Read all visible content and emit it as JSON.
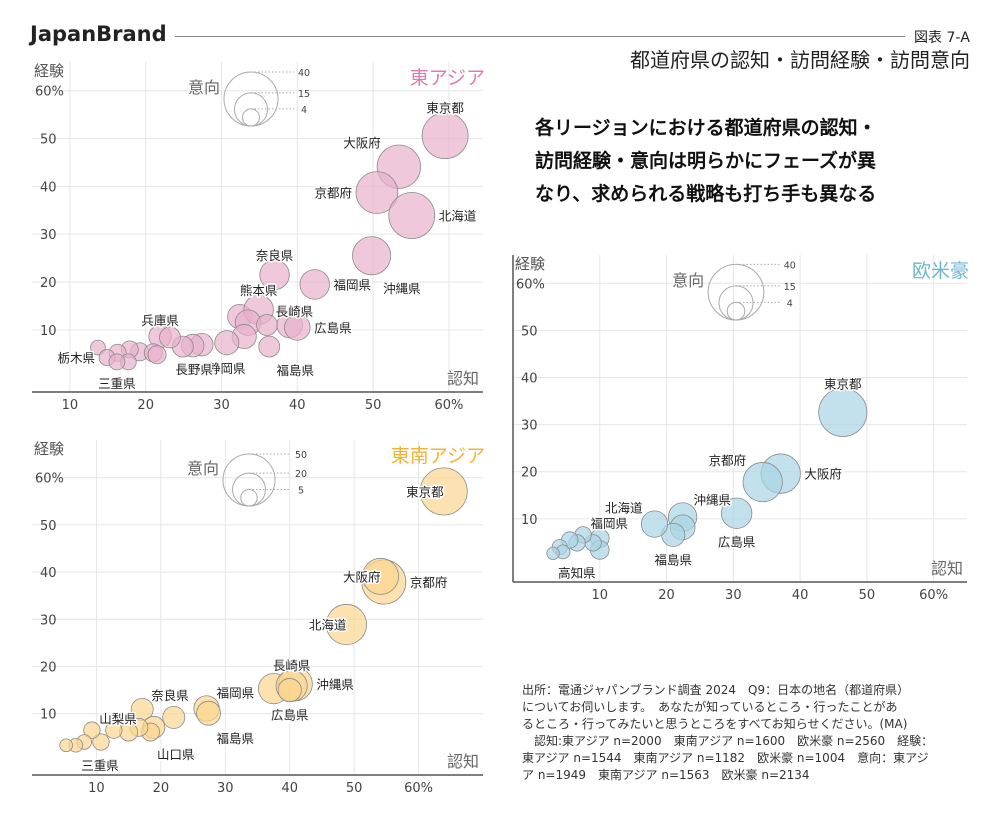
{
  "header": {
    "brand": "JapanBrand",
    "figure_number": "図表 7-A",
    "subtitle": "都道府県の認知・訪問経験・訪問意向"
  },
  "headline": [
    "各リージョンにおける都道府県の認知・",
    "訪問経験・意向は明らかにフェーズが異",
    "なり、求められる戦略も打ち手も異なる"
  ],
  "footnote": [
    "出所：電通ジャパンブランド調査 2024　Q9：日本の地名（都道府県）",
    "についてお伺いします。　あなたが知っているところ・行ったことがあ",
    "るところ・行ってみたいと思うところをすべてお知らせください。(MA)",
    "　認知:東アジア n=2000　東南アジア n=1600　欧米豪 n=2560　経験：",
    "東アジア n=1544　東南アジア n=1182　欧米豪 n=1004　意向：東アジ",
    "ア n=1949　東南アジア n=1563　欧米豪 n=2134"
  ],
  "chart_data": [
    {
      "type": "scatter",
      "region": "東アジア",
      "color": "#e07bb0",
      "bubble_color": "#e8b0cc",
      "xlabel": "認知",
      "ylabel": "経験",
      "size_label": "意向",
      "xticks": [
        "10",
        "20",
        "30",
        "40",
        "50",
        "60%"
      ],
      "xtick_values": [
        10,
        20,
        30,
        40,
        50,
        60
      ],
      "yticks": [
        "10",
        "20",
        "30",
        "40",
        "50",
        "60%"
      ],
      "ytick_values": [
        10,
        20,
        30,
        40,
        50,
        60
      ],
      "xlim": [
        5,
        64.5
      ],
      "ylim": [
        -3,
        66
      ],
      "grid": true,
      "size_legend": [
        40,
        15,
        4
      ],
      "points": [
        {
          "x": 59.5,
          "y": 50.6,
          "v": 29,
          "label": "東京都",
          "label_pos": "top"
        },
        {
          "x": 53.4,
          "y": 44.1,
          "v": 26,
          "label": "大阪府",
          "label_pos": "top-left"
        },
        {
          "x": 50.5,
          "y": 38.7,
          "v": 24,
          "label": "京都府",
          "label_pos": "left"
        },
        {
          "x": 55.1,
          "y": 33.9,
          "v": 29,
          "label": "北海道",
          "label_pos": "right"
        },
        {
          "x": 49.8,
          "y": 25.5,
          "v": 20,
          "label": "沖縄県",
          "label_pos": "bottom-right"
        },
        {
          "x": 42.3,
          "y": 19.5,
          "v": 12,
          "label": "福岡県",
          "label_pos": "right"
        },
        {
          "x": 37.0,
          "y": 21.5,
          "v": 12,
          "label": "奈良県",
          "label_pos": "top"
        },
        {
          "x": 32.4,
          "y": 12.8,
          "v": 8
        },
        {
          "x": 34.9,
          "y": 14.2,
          "v": 12,
          "label": "熊本県",
          "label_pos": "top"
        },
        {
          "x": 33.5,
          "y": 11.5,
          "v": 9
        },
        {
          "x": 36.0,
          "y": 11.0,
          "v": 6,
          "label": "長崎県",
          "label_pos": "top-right"
        },
        {
          "x": 39.0,
          "y": 11.0,
          "v": 9
        },
        {
          "x": 40.0,
          "y": 10.5,
          "v": 9,
          "label": "広島県",
          "label_pos": "right"
        },
        {
          "x": 33.0,
          "y": 8.6,
          "v": 8
        },
        {
          "x": 36.3,
          "y": 6.5,
          "v": 6,
          "label": "福島県",
          "label_pos": "bottom-right"
        },
        {
          "x": 30.7,
          "y": 7.3,
          "v": 8,
          "label": "静岡県",
          "label_pos": "bottom"
        },
        {
          "x": 27.4,
          "y": 6.9,
          "v": 7,
          "label": "長野県",
          "label_pos": "bottom-left"
        },
        {
          "x": 26.2,
          "y": 6.7,
          "v": 7
        },
        {
          "x": 24.9,
          "y": 6.5,
          "v": 6
        },
        {
          "x": 21.9,
          "y": 8.6,
          "v": 7,
          "label": "兵庫県",
          "label_pos": "top"
        },
        {
          "x": 23.2,
          "y": 8.4,
          "v": 6
        },
        {
          "x": 19.2,
          "y": 5.4,
          "v": 4.5
        },
        {
          "x": 21.0,
          "y": 5.2,
          "v": 4.5
        },
        {
          "x": 21.5,
          "y": 4.8,
          "v": 4.5
        },
        {
          "x": 17.9,
          "y": 5.9,
          "v": 4
        },
        {
          "x": 16.3,
          "y": 5.2,
          "v": 4
        },
        {
          "x": 17.7,
          "y": 3.3,
          "v": 3.5
        },
        {
          "x": 13.7,
          "y": 6.3,
          "v": 3
        },
        {
          "x": 14.9,
          "y": 4.2,
          "v": 3.5,
          "label": "栃木県",
          "label_pos": "left"
        },
        {
          "x": 16.2,
          "y": 3.3,
          "v": 3.5,
          "label": "三重県",
          "label_pos": "bottom"
        }
      ]
    },
    {
      "type": "scatter",
      "region": "東南アジア",
      "color": "#f5b335",
      "bubble_color": "#fbd68e",
      "xlabel": "認知",
      "ylabel": "経験",
      "size_label": "意向",
      "xticks": [
        "10",
        "20",
        "30",
        "40",
        "50",
        "60%"
      ],
      "xtick_values": [
        10,
        20,
        30,
        40,
        50,
        60
      ],
      "yticks": [
        "10",
        "20",
        "30",
        "40",
        "50",
        "60%"
      ],
      "ytick_values": [
        10,
        20,
        30,
        40,
        50,
        60
      ],
      "xlim": [
        0,
        70
      ],
      "ylim": [
        -3,
        68
      ],
      "grid": true,
      "size_legend": [
        50,
        20,
        5
      ],
      "points": [
        {
          "x": 63.9,
          "y": 57.1,
          "v": 41,
          "label": "東京都",
          "label_pos": "left-in"
        },
        {
          "x": 54.6,
          "y": 37.9,
          "v": 36,
          "label": "京都府",
          "label_pos": "right"
        },
        {
          "x": 54.1,
          "y": 39.1,
          "v": 24,
          "label": "大阪府",
          "label_pos": "left-in"
        },
        {
          "x": 48.8,
          "y": 28.9,
          "v": 30,
          "label": "北海道",
          "label_pos": "left-in"
        },
        {
          "x": 37.5,
          "y": 15.3,
          "v": 17
        },
        {
          "x": 40.9,
          "y": 16.3,
          "v": 21,
          "label": "沖縄県",
          "label_pos": "right"
        },
        {
          "x": 40.3,
          "y": 15.9,
          "v": 18,
          "label": "長崎県",
          "label_pos": "top"
        },
        {
          "x": 40.0,
          "y": 15.0,
          "v": 10,
          "label": "広島県",
          "label_pos": "bottom"
        },
        {
          "x": 27.1,
          "y": 11.1,
          "v": 12,
          "label": "福岡県",
          "label_pos": "top-right"
        },
        {
          "x": 27.4,
          "y": 10.1,
          "v": 10.6,
          "label": "福島県",
          "label_pos": "bottom-right"
        },
        {
          "x": 17.1,
          "y": 10.9,
          "v": 9,
          "label": "奈良県",
          "label_pos": "top-right"
        },
        {
          "x": 22.0,
          "y": 9.2,
          "v": 9
        },
        {
          "x": 18.9,
          "y": 7.1,
          "v": 9
        },
        {
          "x": 18.4,
          "y": 6.1,
          "v": 6,
          "label": "山口県",
          "label_pos": "bottom-right"
        },
        {
          "x": 16.6,
          "y": 7.1,
          "v": 6
        },
        {
          "x": 15.0,
          "y": 6.1,
          "v": 6
        },
        {
          "x": 12.7,
          "y": 6.5,
          "v": 5
        },
        {
          "x": 10.7,
          "y": 4.0,
          "v": 5
        },
        {
          "x": 9.3,
          "y": 6.5,
          "v": 5,
          "label": "山梨県",
          "label_pos": "top-right"
        },
        {
          "x": 8.1,
          "y": 4.0,
          "v": 4
        },
        {
          "x": 6.8,
          "y": 3.3,
          "v": 3.5,
          "label": "三重県",
          "label_pos": "bottom-right"
        },
        {
          "x": 5.3,
          "y": 3.3,
          "v": 3
        }
      ]
    },
    {
      "type": "scatter",
      "region": "欧米豪",
      "color": "#6cb6d4",
      "bubble_color": "#a9d4e4",
      "xlabel": "認知",
      "ylabel": "経験",
      "size_label": "意向",
      "xticks": [
        "10",
        "20",
        "30",
        "40",
        "50",
        "60%"
      ],
      "xtick_values": [
        10,
        20,
        30,
        40,
        50,
        60
      ],
      "yticks": [
        "10",
        "20",
        "30",
        "40",
        "50",
        "60%"
      ],
      "ytick_values": [
        10,
        20,
        30,
        40,
        50,
        60
      ],
      "xlim": [
        -3,
        65
      ],
      "ylim": [
        -3.4,
        66
      ],
      "grid": true,
      "size_legend": [
        40,
        15,
        4
      ],
      "points": [
        {
          "x": 46.4,
          "y": 32.6,
          "v": 30,
          "label": "東京都",
          "label_pos": "top"
        },
        {
          "x": 37.1,
          "y": 19.6,
          "v": 20,
          "label": "大阪府",
          "label_pos": "right"
        },
        {
          "x": 34.4,
          "y": 17.8,
          "v": 20,
          "label": "京都府",
          "label_pos": "top-left"
        },
        {
          "x": 30.5,
          "y": 11.2,
          "v": 12,
          "label": "広島県",
          "label_pos": "bottom"
        },
        {
          "x": 22.4,
          "y": 10.4,
          "v": 10.5,
          "label": "沖縄県",
          "label_pos": "top-right"
        },
        {
          "x": 22.4,
          "y": 8.2,
          "v": 8
        },
        {
          "x": 21.0,
          "y": 6.6,
          "v": 7,
          "label": "福島県",
          "label_pos": "bottom"
        },
        {
          "x": 18.2,
          "y": 8.9,
          "v": 9,
          "label": "北海道",
          "label_pos": "top-left"
        },
        {
          "x": 10.0,
          "y": 5.9,
          "v": 4.5
        },
        {
          "x": 10.0,
          "y": 3.4,
          "v": 4.5
        },
        {
          "x": 9.0,
          "y": 4.9,
          "v": 3.5
        },
        {
          "x": 7.5,
          "y": 6.6,
          "v": 3.5,
          "label": "福岡県",
          "label_pos": "top-right"
        },
        {
          "x": 6.6,
          "y": 4.9,
          "v": 3.5
        },
        {
          "x": 5.5,
          "y": 5.5,
          "v": 3.5
        },
        {
          "x": 4.0,
          "y": 4.0,
          "v": 3
        },
        {
          "x": 4.5,
          "y": 3.0,
          "v": 2.5
        },
        {
          "x": 3.0,
          "y": 2.7,
          "v": 2,
          "label": "高知県",
          "label_pos": "bottom-right"
        }
      ]
    }
  ]
}
